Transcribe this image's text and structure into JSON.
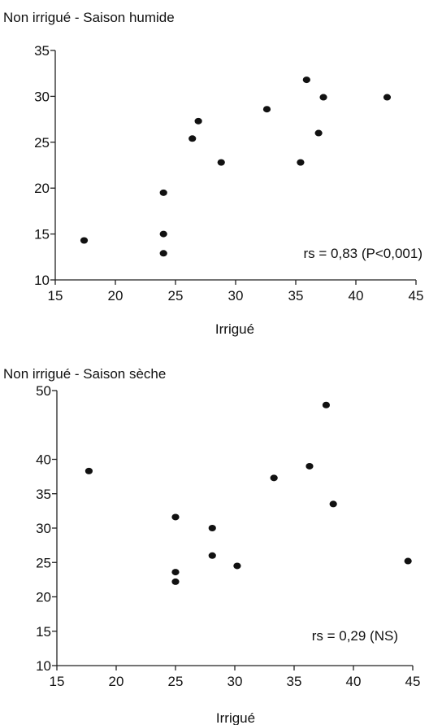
{
  "chart_data": [
    {
      "type": "scatter",
      "title": "Non irrigué - Saison humide",
      "xlabel": "Irrigué",
      "ylabel": "",
      "xlim": [
        15,
        45
      ],
      "ylim": [
        10,
        35
      ],
      "xticks": [
        15,
        20,
        25,
        30,
        35,
        40,
        45
      ],
      "yticks": [
        10,
        15,
        20,
        25,
        30,
        35
      ],
      "annotation": "rs = 0,83 (P<0,001)",
      "grid": false,
      "points": [
        {
          "x": 17.4,
          "y": 14.3
        },
        {
          "x": 24.0,
          "y": 19.5
        },
        {
          "x": 24.0,
          "y": 15.0
        },
        {
          "x": 24.0,
          "y": 12.9
        },
        {
          "x": 26.4,
          "y": 25.4
        },
        {
          "x": 26.9,
          "y": 27.3
        },
        {
          "x": 28.8,
          "y": 22.8
        },
        {
          "x": 32.6,
          "y": 28.6
        },
        {
          "x": 35.4,
          "y": 22.8
        },
        {
          "x": 35.9,
          "y": 31.8
        },
        {
          "x": 36.9,
          "y": 26.0
        },
        {
          "x": 37.3,
          "y": 29.9
        },
        {
          "x": 42.6,
          "y": 29.9
        }
      ]
    },
    {
      "type": "scatter",
      "title": "Non irrigué - Saison sèche",
      "xlabel": "Irrigué",
      "ylabel": "",
      "xlim": [
        15,
        45
      ],
      "ylim": [
        10,
        50
      ],
      "xticks": [
        15,
        20,
        25,
        30,
        35,
        40,
        45
      ],
      "yticks": [
        10,
        15,
        20,
        25,
        30,
        35,
        40,
        50
      ],
      "annotation": "rs = 0,29 (NS)",
      "grid": false,
      "points": [
        {
          "x": 17.7,
          "y": 38.3
        },
        {
          "x": 25.0,
          "y": 31.6
        },
        {
          "x": 25.0,
          "y": 23.6
        },
        {
          "x": 25.0,
          "y": 22.2
        },
        {
          "x": 28.1,
          "y": 30.0
        },
        {
          "x": 28.1,
          "y": 26.0
        },
        {
          "x": 30.2,
          "y": 24.5
        },
        {
          "x": 33.3,
          "y": 37.3
        },
        {
          "x": 36.3,
          "y": 39.0
        },
        {
          "x": 37.7,
          "y": 47.9
        },
        {
          "x": 38.3,
          "y": 33.5
        },
        {
          "x": 44.6,
          "y": 25.2
        }
      ]
    }
  ]
}
